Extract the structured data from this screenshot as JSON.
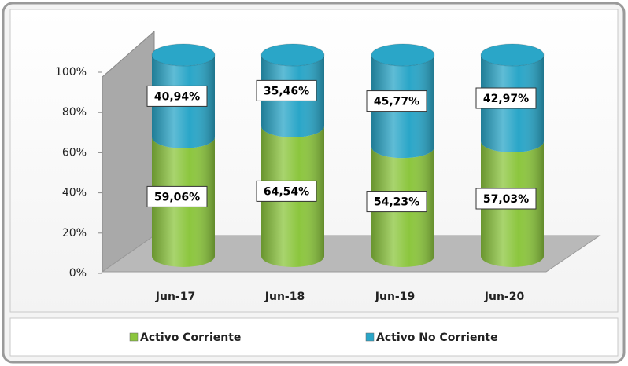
{
  "chart_data": {
    "type": "stacked_bar",
    "categories": [
      "Jun-17",
      "Jun-18",
      "Jun-19",
      "Jun-20"
    ],
    "series": [
      {
        "name": "Activo Corriente",
        "color": "#8cc63e",
        "values": [
          59.06,
          64.54,
          54.23,
          57.03
        ],
        "value_labels": [
          "59,06%",
          "64,54%",
          "54,23%",
          "57,03%"
        ]
      },
      {
        "name": "Activo No Corriente",
        "color": "#2aa6c8",
        "values": [
          40.94,
          35.46,
          45.77,
          42.97
        ],
        "value_labels": [
          "40,94%",
          "35,46%",
          "45,77%",
          "42,97%"
        ]
      }
    ],
    "ylim": [
      0,
      100
    ],
    "yticks": [
      {
        "value": 0,
        "label": "0%"
      },
      {
        "value": 20,
        "label": "20%"
      },
      {
        "value": 40,
        "label": "40%"
      },
      {
        "value": 60,
        "label": "60%"
      },
      {
        "value": 80,
        "label": "80%"
      },
      {
        "value": 100,
        "label": "100%"
      }
    ],
    "legend": "bottom"
  }
}
